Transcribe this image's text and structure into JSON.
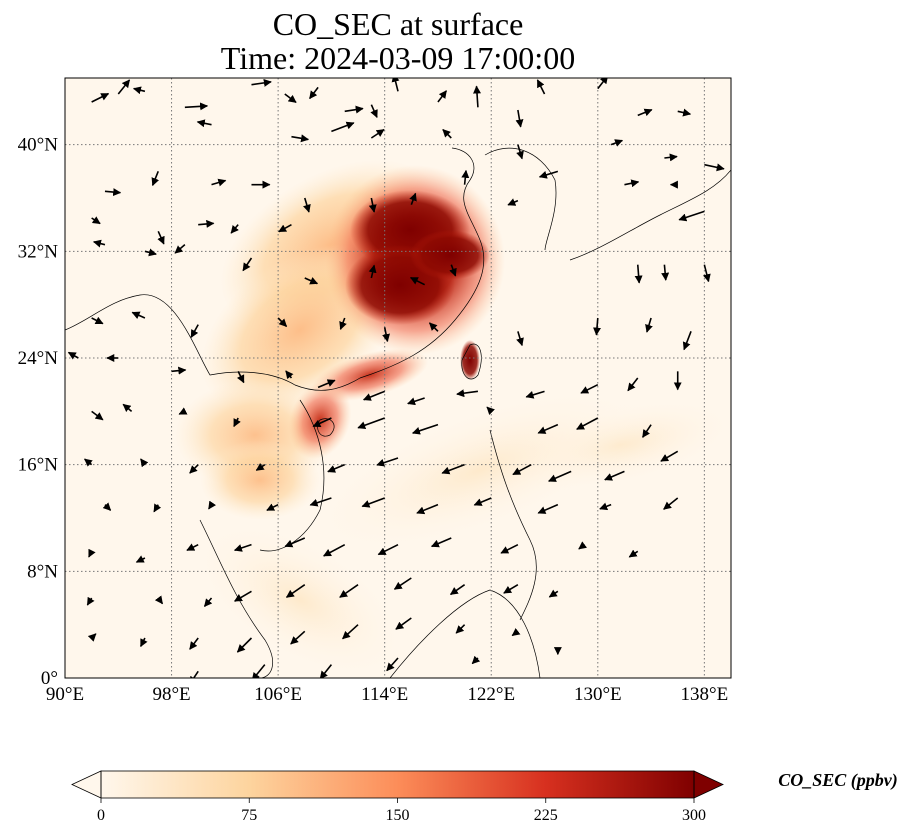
{
  "title": {
    "line1": "CO_SEC at surface",
    "line2": "Time: 2024-03-09 17:00:00"
  },
  "map": {
    "projection": "PlateCarree",
    "lon_range": [
      90,
      140
    ],
    "lat_range": [
      0,
      45
    ],
    "gridlines": "dotted",
    "x_ticks": [
      {
        "value": 90,
        "label": "90°E"
      },
      {
        "value": 98,
        "label": "98°E"
      },
      {
        "value": 106,
        "label": "106°E"
      },
      {
        "value": 114,
        "label": "114°E"
      },
      {
        "value": 122,
        "label": "122°E"
      },
      {
        "value": 130,
        "label": "130°E"
      },
      {
        "value": 138,
        "label": "138°E"
      }
    ],
    "y_ticks": [
      {
        "value": 0,
        "label": "0°"
      },
      {
        "value": 8,
        "label": "8°N"
      },
      {
        "value": 16,
        "label": "16°N"
      },
      {
        "value": 24,
        "label": "24°N"
      },
      {
        "value": 32,
        "label": "32°N"
      },
      {
        "value": 40,
        "label": "40°N"
      }
    ],
    "colormap": "OrRd",
    "colors": {
      "c0": "#fff7ec",
      "c1": "#fdd49e",
      "c2": "#fc8d59",
      "c3": "#d7301f",
      "c4": "#7f0000"
    },
    "colorbar": {
      "ticks": [
        {
          "value": 0,
          "label": "0"
        },
        {
          "value": 75,
          "label": "75"
        },
        {
          "value": 150,
          "label": "150"
        },
        {
          "value": 225,
          "label": "225"
        },
        {
          "value": 300,
          "label": "300"
        }
      ],
      "min": 0,
      "max": 300,
      "extend": "both",
      "label": "CO_SEC (ppbv)"
    },
    "wind_vectors": [
      [
        92,
        43.2,
        1.2,
        0.6
      ],
      [
        94,
        43.8,
        0.8,
        1
      ],
      [
        96,
        44,
        -0.8,
        0.2
      ],
      [
        99,
        42.8,
        1.6,
        0.1
      ],
      [
        104,
        44.5,
        1.4,
        0.2
      ],
      [
        106.5,
        43.8,
        0.8,
        -0.6
      ],
      [
        109,
        44.3,
        -0.6,
        -0.8
      ],
      [
        111,
        42.5,
        1.3,
        0.2
      ],
      [
        113,
        43,
        0.4,
        -0.9
      ],
      [
        115,
        44,
        -0.3,
        1.2
      ],
      [
        118,
        43.2,
        0.6,
        0.8
      ],
      [
        121,
        42.8,
        -0.1,
        1.5
      ],
      [
        124,
        42.6,
        0.2,
        -1.2
      ],
      [
        126,
        43.8,
        -0.5,
        1
      ],
      [
        130,
        44.2,
        0.7,
        0.9
      ],
      [
        133,
        42.2,
        1,
        0.4
      ],
      [
        136,
        42.5,
        0.9,
        -0.2
      ],
      [
        101,
        41.5,
        -1,
        0.2
      ],
      [
        107,
        40.6,
        1.2,
        -0.2
      ],
      [
        110,
        41,
        1.6,
        0.6
      ],
      [
        113,
        40.5,
        0.9,
        0.6
      ],
      [
        119,
        40.5,
        -0.6,
        0.6
      ],
      [
        124,
        40,
        0.3,
        -1
      ],
      [
        131,
        40,
        0.8,
        0.3
      ],
      [
        135,
        39,
        0.9,
        0.1
      ],
      [
        138,
        38.5,
        1.4,
        -0.3
      ],
      [
        93,
        36.5,
        1.1,
        -0.1
      ],
      [
        97,
        38,
        -0.4,
        -1
      ],
      [
        101,
        37,
        1,
        0.3
      ],
      [
        104,
        37,
        1.3,
        0
      ],
      [
        108,
        36,
        0.3,
        -1
      ],
      [
        120,
        37,
        0.1,
        1
      ],
      [
        127,
        38,
        -1.3,
        -0.4
      ],
      [
        132,
        37,
        1,
        0.2
      ],
      [
        136,
        37,
        -0.5,
        0
      ],
      [
        92,
        34.5,
        0.6,
        -0.4
      ],
      [
        97,
        33.5,
        0.4,
        -0.9
      ],
      [
        100,
        34,
        1.1,
        0.1
      ],
      [
        103,
        34,
        -0.5,
        -0.6
      ],
      [
        107,
        34,
        -0.9,
        -0.5
      ],
      [
        113,
        36,
        0.2,
        -1
      ],
      [
        116,
        35.5,
        0.3,
        0.8
      ],
      [
        124,
        35.8,
        -0.7,
        -0.3
      ],
      [
        138,
        35,
        -1.8,
        -0.6
      ],
      [
        93,
        32.5,
        -0.8,
        0.2
      ],
      [
        96,
        32,
        0.8,
        -0.2
      ],
      [
        99,
        32.5,
        -0.7,
        -0.6
      ],
      [
        104,
        31.5,
        -0.6,
        -0.9
      ],
      [
        108,
        30,
        0.9,
        -0.4
      ],
      [
        113,
        30,
        0.2,
        0.9
      ],
      [
        117,
        29.5,
        -1,
        0.5
      ],
      [
        119,
        31,
        0.3,
        -0.8
      ],
      [
        133,
        31,
        0.1,
        -1.3
      ],
      [
        135,
        31,
        0.1,
        -1.1
      ],
      [
        138,
        31,
        0.3,
        -1.2
      ],
      [
        92,
        27,
        0.8,
        -0.4
      ],
      [
        96,
        27,
        -0.9,
        0.4
      ],
      [
        100,
        26.5,
        -0.5,
        -0.9
      ],
      [
        106,
        27,
        0.6,
        -0.6
      ],
      [
        111,
        27,
        -0.3,
        -0.8
      ],
      [
        114,
        26.3,
        0.2,
        -1
      ],
      [
        118,
        26,
        -0.6,
        0.6
      ],
      [
        124,
        26,
        0.3,
        -1
      ],
      [
        130,
        27,
        -0.1,
        -1.2
      ],
      [
        134,
        27,
        -0.3,
        -1
      ],
      [
        137,
        26,
        -0.5,
        -1.3
      ],
      [
        91,
        24,
        -0.7,
        0.4
      ],
      [
        94,
        24,
        -0.8,
        0
      ],
      [
        98,
        23,
        1,
        0.1
      ],
      [
        103,
        23,
        0.4,
        -0.8
      ],
      [
        107,
        22.5,
        -0.4,
        0.5
      ],
      [
        109,
        21.8,
        1.2,
        0.5
      ],
      [
        114,
        21.5,
        -1.5,
        -0.6
      ],
      [
        117,
        21,
        -1.2,
        -0.4
      ],
      [
        121,
        21.5,
        -1.5,
        -0.2
      ],
      [
        126,
        21.5,
        -1.3,
        -0.4
      ],
      [
        130,
        22,
        -1.2,
        -0.6
      ],
      [
        133,
        22.5,
        -0.7,
        -0.9
      ],
      [
        136,
        23,
        0,
        -1.3
      ],
      [
        92,
        20,
        0.8,
        -0.6
      ],
      [
        95,
        20,
        -0.6,
        0.5
      ],
      [
        99,
        20,
        -0.4,
        -0.2
      ],
      [
        103,
        19.5,
        -0.3,
        -0.6
      ],
      [
        110,
        19.5,
        -1.3,
        -0.6
      ],
      [
        114,
        19.5,
        -1.9,
        -0.7
      ],
      [
        118,
        19,
        -1.8,
        -0.6
      ],
      [
        122,
        20,
        -0.3,
        0.3
      ],
      [
        127,
        19,
        -1.4,
        -0.6
      ],
      [
        130,
        19.5,
        -1.5,
        -0.8
      ],
      [
        134,
        19,
        -0.6,
        -0.9
      ],
      [
        92,
        16,
        -0.5,
        0.4
      ],
      [
        96,
        16,
        -0.3,
        0.4
      ],
      [
        100,
        16,
        -0.6,
        -0.6
      ],
      [
        105,
        16,
        -0.6,
        -0.4
      ],
      [
        111,
        16,
        -1.2,
        -0.5
      ],
      [
        115,
        16.5,
        -1.5,
        -0.5
      ],
      [
        120,
        16,
        -1.6,
        -0.6
      ],
      [
        125,
        16,
        -1.3,
        -0.7
      ],
      [
        128,
        15.5,
        -1.6,
        -0.7
      ],
      [
        132,
        15.5,
        -1.4,
        -0.6
      ],
      [
        136,
        17,
        -1.2,
        -0.7
      ],
      [
        93,
        13,
        0.4,
        -0.4
      ],
      [
        97,
        13,
        -0.3,
        -0.5
      ],
      [
        101,
        13,
        -0.2,
        -0.3
      ],
      [
        106,
        13,
        -0.8,
        -0.4
      ],
      [
        110,
        13.5,
        -1.5,
        -0.5
      ],
      [
        114,
        13.5,
        -1.6,
        -0.6
      ],
      [
        118,
        13,
        -1.5,
        -0.6
      ],
      [
        122,
        13.5,
        -1.2,
        -0.5
      ],
      [
        127,
        13,
        -1.4,
        -0.6
      ],
      [
        131,
        13,
        -0.8,
        -0.3
      ],
      [
        136,
        13.5,
        -1,
        -0.8
      ],
      [
        92,
        9.5,
        -0.2,
        -0.4
      ],
      [
        96,
        9,
        -0.6,
        -0.3
      ],
      [
        100,
        10,
        -0.8,
        -0.4
      ],
      [
        104,
        10,
        -1.2,
        -0.4
      ],
      [
        108,
        10.5,
        -1.4,
        -0.6
      ],
      [
        111,
        10,
        -1.5,
        -0.8
      ],
      [
        115,
        10,
        -1.4,
        -0.7
      ],
      [
        119,
        10.5,
        -1.4,
        -0.6
      ],
      [
        124,
        10,
        -1.2,
        -0.6
      ],
      [
        129,
        10,
        -0.4,
        -0.3
      ],
      [
        133,
        9.5,
        -0.6,
        -0.4
      ],
      [
        92,
        6,
        -0.3,
        -0.5
      ],
      [
        97,
        6,
        0.3,
        -0.4
      ],
      [
        101,
        6,
        -0.5,
        -0.6
      ],
      [
        104,
        6.5,
        -1.2,
        -0.7
      ],
      [
        108,
        7,
        -1.3,
        -0.9
      ],
      [
        112,
        7,
        -1.3,
        -0.9
      ],
      [
        116,
        7.5,
        -1.2,
        -0.8
      ],
      [
        120,
        7,
        -1,
        -0.7
      ],
      [
        124,
        7,
        -1,
        -0.6
      ],
      [
        127,
        6.5,
        -0.6,
        -0.4
      ],
      [
        92,
        3,
        0.3,
        0.3
      ],
      [
        96,
        3,
        -0.3,
        -0.6
      ],
      [
        100,
        3,
        -0.6,
        -0.8
      ],
      [
        104,
        3,
        -1,
        -1
      ],
      [
        108,
        3.5,
        -1,
        -0.9
      ],
      [
        112,
        4,
        -1.1,
        -1
      ],
      [
        116,
        4.5,
        -1.1,
        -0.8
      ],
      [
        120,
        4,
        -0.6,
        -0.6
      ],
      [
        124,
        3.5,
        -0.4,
        -0.3
      ],
      [
        100,
        0.5,
        -0.6,
        -0.9
      ],
      [
        105,
        1,
        -0.9,
        -1.1
      ],
      [
        110,
        1,
        -0.8,
        -1
      ],
      [
        115,
        1.5,
        -0.8,
        -0.9
      ],
      [
        121,
        1.5,
        -0.4,
        -0.4
      ],
      [
        127,
        2.2,
        0,
        -0.4
      ]
    ]
  }
}
